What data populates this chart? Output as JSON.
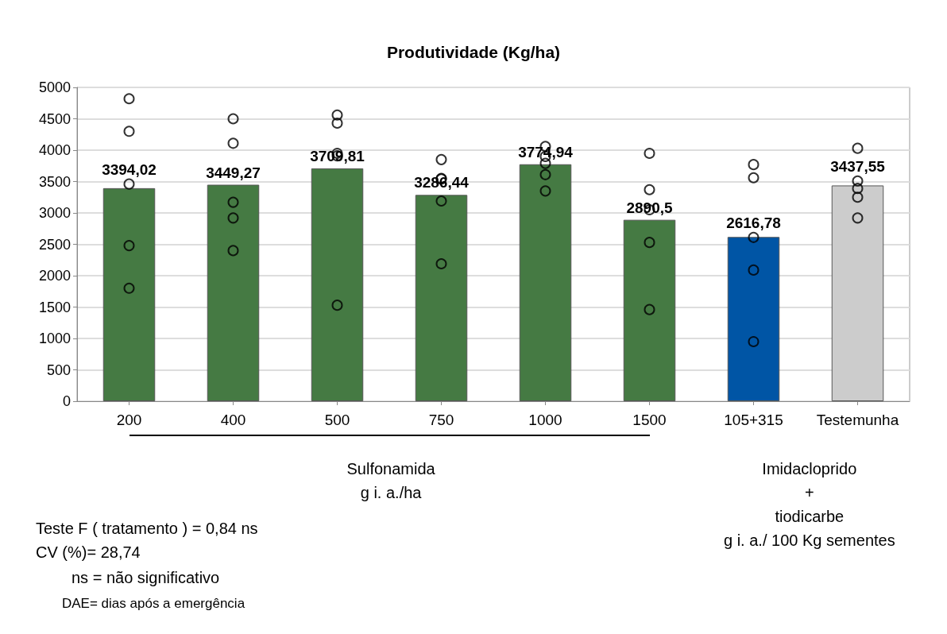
{
  "chart_data": {
    "type": "bar",
    "title": "Produtividade (Kg/ha)",
    "categories": [
      "200",
      "400",
      "500",
      "750",
      "1000",
      "1500",
      "105+315",
      "Testemunha"
    ],
    "series": [
      {
        "colors": [
          "#457a43",
          "#457a43",
          "#457a43",
          "#457a43",
          "#457a43",
          "#457a43",
          "#0055a5",
          "#cccccc"
        ],
        "values": [
          3394.02,
          3449.27,
          3709.81,
          3286.44,
          3774.94,
          2890.5,
          2616.78,
          3437.55
        ],
        "value_labels": [
          "3394,02",
          "3449,27",
          "3709,81",
          "3286,44",
          "3774,94",
          "2890,5",
          "2616,78",
          "3437,55"
        ]
      },
      {
        "type": "scatter",
        "color": "#000000",
        "marker": "circle",
        "values": [
          4820,
          4500,
          4560,
          3850,
          4060,
          3950,
          3770,
          4030
        ]
      },
      {
        "type": "scatter",
        "color": "#000000",
        "marker": "circle",
        "values": [
          4300,
          4110,
          4430,
          3550,
          3900,
          3370,
          3560,
          3510
        ]
      },
      {
        "type": "scatter",
        "color": "#000000",
        "marker": "circle",
        "values": [
          3460,
          3170,
          3950,
          3540,
          3790,
          3050,
          2610,
          3390
        ]
      },
      {
        "type": "scatter",
        "color": "#000000",
        "marker": "circle",
        "values": [
          2480,
          2920,
          3910,
          3190,
          3610,
          2530,
          2090,
          3250
        ]
      },
      {
        "type": "scatter",
        "color": "#000000",
        "marker": "circle",
        "values": [
          1800,
          2400,
          1530,
          2190,
          3350,
          1460,
          950,
          2920
        ]
      }
    ],
    "ylim": [
      0,
      5000
    ],
    "yticks": [
      0,
      500,
      1000,
      1500,
      2000,
      2500,
      3000,
      3500,
      4000,
      4500,
      5000
    ],
    "grid": "y",
    "annotations": [
      "Sulfonamida\ng i. a./ha",
      "Imidacloprido\n+\ntiodicarbe\ng i. a./ 100 Kg sementes",
      "Teste F ( tratamento ) = 0,84 ns",
      "CV (%)= 28,74",
      "ns = não significativo",
      "DAE= dias após a emergência"
    ]
  }
}
